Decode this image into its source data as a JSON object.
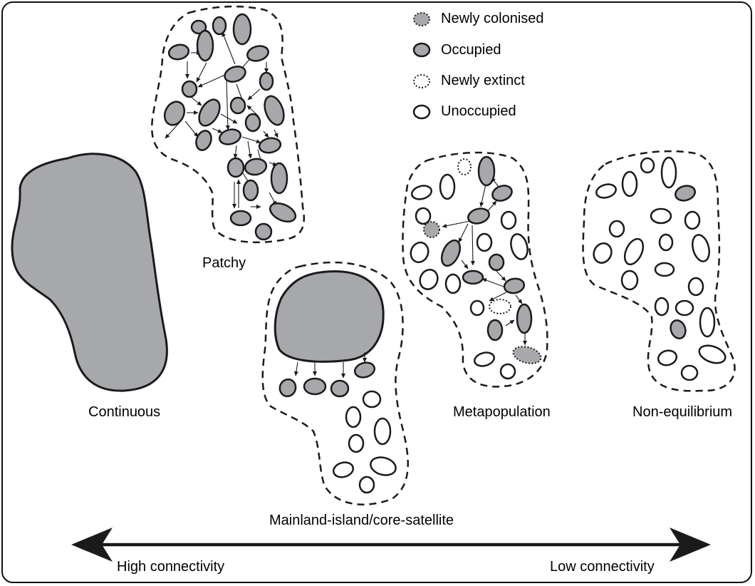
{
  "legend": {
    "newly_colonised": "Newly colonised",
    "occupied": "Occupied",
    "newly_extinct": "Newly extinct",
    "unoccupied": "Unoccupied"
  },
  "labels": {
    "continuous": "Continuous",
    "patchy": "Patchy",
    "mainland_island": "Mainland-island/core-satellite",
    "metapopulation": "Metapopulation",
    "non_equilibrium": "Non-equilibrium"
  },
  "axis": {
    "high": "High connectivity",
    "low": "Low connectivity"
  },
  "colors": {
    "occupied_fill": "#a7a8ab",
    "stroke": "#1a1a1a",
    "background": "#ffffff"
  }
}
